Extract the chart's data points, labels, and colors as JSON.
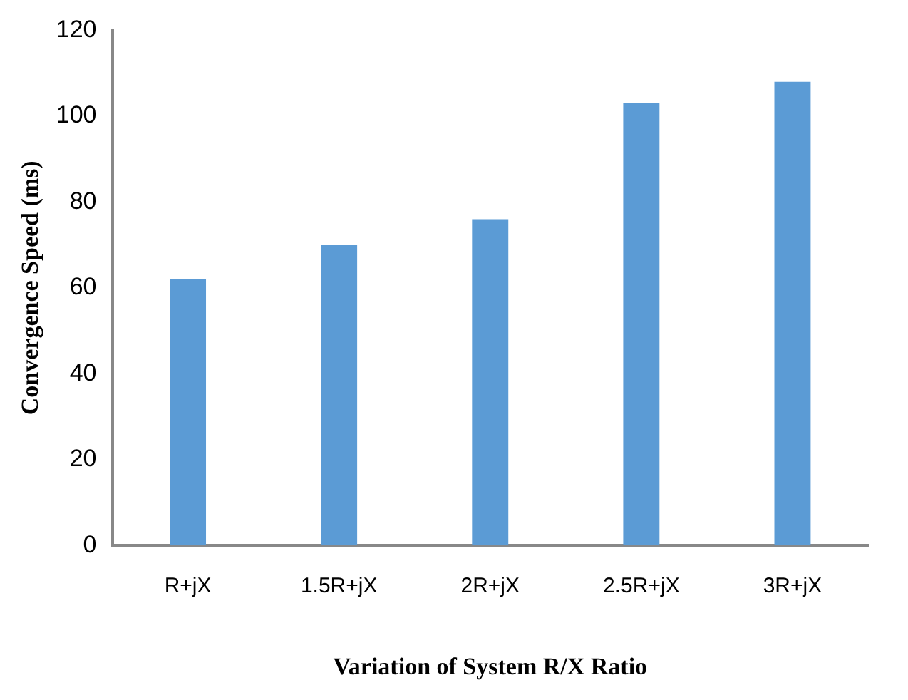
{
  "chart_data": {
    "type": "bar",
    "xlabel": "Variation of System R/X Ratio",
    "ylabel": "Convergence Speed (ms)",
    "categories": [
      "R+jX",
      "1.5R+jX",
      "2R+jX",
      "2.5R+jX",
      "3R+jX"
    ],
    "values": [
      62,
      70,
      76,
      103,
      108
    ],
    "color": "#5b9bd5",
    "ylim": [
      0,
      120
    ],
    "yticks": [
      0,
      20,
      40,
      60,
      80,
      100,
      120
    ],
    "grid": false,
    "legend": false
  }
}
